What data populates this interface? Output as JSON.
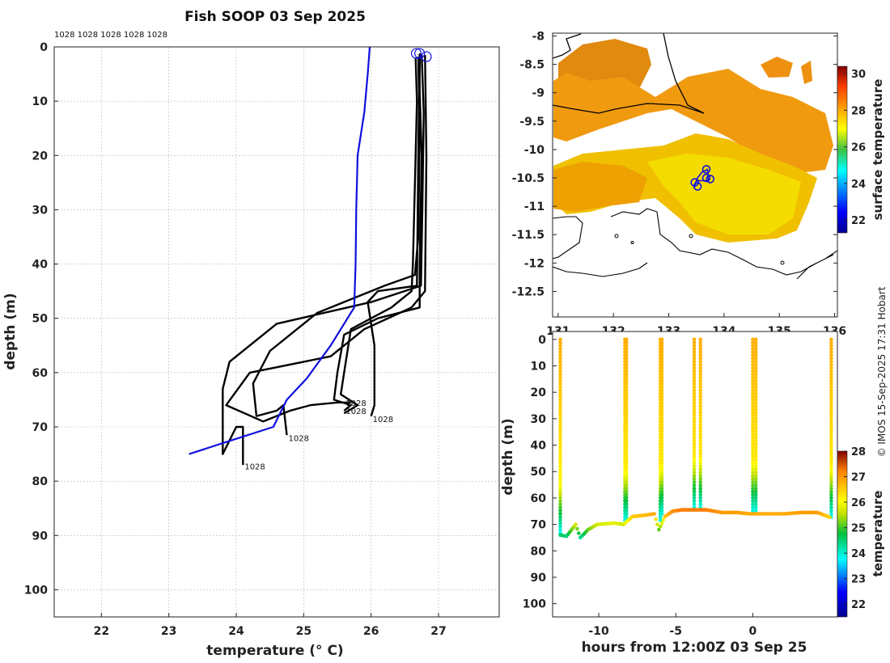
{
  "title": "Fish SOOP 03 Sep 2025",
  "credit": "© IMOS 15-Sep-2025 17:31 Hobart",
  "colors": {
    "profile": "#000000",
    "climatology": "#1010dd",
    "background": "#ffffff"
  },
  "chart_data": [
    {
      "type": "line",
      "panel": "profiles",
      "xlabel": "temperature (° C)",
      "ylabel": "depth (m)",
      "xlim": [
        21.3,
        27.9
      ],
      "ylim": [
        105,
        0
      ],
      "xticks": [
        "22",
        "23",
        "24",
        "25",
        "26",
        "27"
      ],
      "yticks": [
        "0",
        "10",
        "20",
        "30",
        "40",
        "50",
        "60",
        "70",
        "80",
        "90",
        "100"
      ],
      "grid": true,
      "top_labels": "1028 1028 1028 1028 1028",
      "end_labels": [
        {
          "text": "1028",
          "x": 25.6,
          "y": 65.5
        },
        {
          "text": "1028",
          "x": 25.6,
          "y": 67.0
        },
        {
          "text": "1028",
          "x": 26.0,
          "y": 68.5
        },
        {
          "text": "1028",
          "x": 24.75,
          "y": 72.0
        },
        {
          "text": "1028",
          "x": 24.1,
          "y": 77.2
        }
      ],
      "surface_markers": [
        [
          26.67,
          1.2
        ],
        [
          26.72,
          1.2
        ],
        [
          26.82,
          1.8
        ]
      ],
      "series": [
        {
          "name": "profile 1",
          "color": "#000000",
          "points": [
            [
              26.72,
              1.2
            ],
            [
              26.72,
              8
            ],
            [
              26.75,
              20
            ],
            [
              26.72,
              40
            ],
            [
              26.72,
              48
            ],
            [
              26.1,
              50
            ],
            [
              25.6,
              53
            ],
            [
              25.5,
              60
            ],
            [
              25.45,
              65
            ],
            [
              25.7,
              66
            ],
            [
              25.6,
              67
            ]
          ]
        },
        {
          "name": "profile 2",
          "color": "#000000",
          "points": [
            [
              26.66,
              2
            ],
            [
              26.68,
              10
            ],
            [
              26.66,
              20
            ],
            [
              26.62,
              40
            ],
            [
              26.6,
              45
            ],
            [
              26.3,
              48
            ],
            [
              25.7,
              52
            ],
            [
              25.6,
              60
            ],
            [
              25.55,
              64
            ],
            [
              25.8,
              66
            ],
            [
              25.6,
              67.5
            ]
          ]
        },
        {
          "name": "profile 3",
          "color": "#000000",
          "points": [
            [
              26.75,
              1.5
            ],
            [
              26.78,
              12
            ],
            [
              26.76,
              30
            ],
            [
              26.74,
              44
            ],
            [
              26.0,
              47
            ],
            [
              24.6,
              51
            ],
            [
              23.9,
              58
            ],
            [
              23.8,
              63
            ],
            [
              23.8,
              75
            ],
            [
              24.0,
              70
            ],
            [
              24.1,
              70
            ],
            [
              24.1,
              77
            ]
          ]
        },
        {
          "name": "profile 4",
          "color": "#000000",
          "points": [
            [
              26.7,
              1.8
            ],
            [
              26.72,
              15
            ],
            [
              26.7,
              35
            ],
            [
              26.65,
              42
            ],
            [
              26.2,
              44
            ],
            [
              25.2,
              49
            ],
            [
              24.5,
              56
            ],
            [
              24.25,
              62
            ],
            [
              24.3,
              68
            ],
            [
              24.6,
              67
            ],
            [
              24.7,
              66
            ],
            [
              24.75,
              71.5
            ]
          ]
        },
        {
          "name": "profile 5",
          "color": "#000000",
          "points": [
            [
              26.8,
              1.5
            ],
            [
              26.82,
              20
            ],
            [
              26.8,
              45
            ],
            [
              26.6,
              48
            ],
            [
              25.9,
              52
            ],
            [
              25.4,
              57
            ],
            [
              24.2,
              60
            ],
            [
              23.85,
              66
            ],
            [
              24.4,
              69
            ],
            [
              24.8,
              67
            ],
            [
              25.1,
              66
            ],
            [
              25.5,
              65.5
            ],
            [
              25.7,
              65.5
            ]
          ]
        },
        {
          "name": "profile 6",
          "color": "#000000",
          "points": [
            [
              26.72,
              1.5
            ],
            [
              26.7,
              20
            ],
            [
              26.68,
              44
            ],
            [
              26.1,
              45
            ],
            [
              25.95,
              47
            ],
            [
              26.05,
              55
            ],
            [
              26.05,
              66
            ],
            [
              26.0,
              68
            ]
          ]
        },
        {
          "name": "climatology",
          "color": "#1010dd",
          "points": [
            [
              25.98,
              0
            ],
            [
              25.95,
              5
            ],
            [
              25.9,
              12
            ],
            [
              25.8,
              20
            ],
            [
              25.78,
              30
            ],
            [
              25.77,
              40
            ],
            [
              25.75,
              48
            ],
            [
              25.4,
              55
            ],
            [
              25.05,
              61
            ],
            [
              24.75,
              65
            ],
            [
              24.55,
              70
            ],
            [
              23.8,
              73
            ],
            [
              23.3,
              75
            ]
          ]
        }
      ]
    },
    {
      "type": "heatmap",
      "panel": "sst_map",
      "xlim": [
        130.9,
        136.05
      ],
      "ylim": [
        -12.95,
        -7.95
      ],
      "xticks": [
        "131",
        "132",
        "133",
        "134",
        "135",
        "136"
      ],
      "yticks": [
        "-8",
        "-8.5",
        "-9",
        "-9.5",
        "-10",
        "-10.5",
        "-11",
        "-11.5",
        "-12",
        "-12.5"
      ],
      "colorbar_label": "surface temperature",
      "colorbar_ticks": [
        "22",
        "24",
        "26",
        "28",
        "30"
      ],
      "colorbar_range": [
        21.3,
        30.4
      ],
      "tow_track": [
        [
          133.47,
          -10.62
        ],
        [
          133.52,
          -10.5
        ],
        [
          133.6,
          -10.4
        ],
        [
          133.7,
          -10.35
        ],
        [
          133.72,
          -10.55
        ],
        [
          133.6,
          -10.55
        ],
        [
          133.5,
          -10.55
        ],
        [
          133.46,
          -10.68
        ]
      ],
      "tow_markers": [
        [
          133.47,
          -10.58
        ],
        [
          133.52,
          -10.65
        ],
        [
          133.68,
          -10.35
        ],
        [
          133.75,
          -10.52
        ],
        [
          133.68,
          -10.5
        ]
      ]
    },
    {
      "type": "scatter",
      "panel": "depth_time",
      "xlabel": "hours from 12:00Z 03 Sep 25",
      "ylabel": "depth (m)",
      "xlim": [
        -13.0,
        5.5
      ],
      "ylim": [
        105,
        -3
      ],
      "xticks": [
        "-10",
        "-5",
        "0"
      ],
      "yticks": [
        "0",
        "10",
        "20",
        "30",
        "40",
        "50",
        "60",
        "70",
        "80",
        "90",
        "100"
      ],
      "colorbar_label": "temperature",
      "colorbar_ticks": [
        "22",
        "23",
        "24",
        "25",
        "26",
        "27",
        "28"
      ],
      "colorbar_range": [
        21.5,
        28.0
      ],
      "surface_temperature": 26.8,
      "transitions": [
        {
          "t": -12.5,
          "d": 74,
          "sst": 26.8
        },
        {
          "t": -8.3,
          "d": 69,
          "sst": 26.8
        },
        {
          "t": -8.2,
          "d": 69,
          "sst": 26.8
        },
        {
          "t": -6.0,
          "d": 69,
          "sst": 26.8
        },
        {
          "t": -5.9,
          "d": 67,
          "sst": 26.8
        },
        {
          "t": -3.8,
          "d": 64,
          "sst": 26.8
        },
        {
          "t": -3.4,
          "d": 64,
          "sst": 26.8
        },
        {
          "t": 0.0,
          "d": 65.5,
          "sst": 26.8
        },
        {
          "t": 0.2,
          "d": 65.5,
          "sst": 26.8
        },
        {
          "t": 5.1,
          "d": 67.5,
          "sst": 26.8
        }
      ],
      "bottom_track": [
        {
          "t": -12.5,
          "d": 74
        },
        {
          "t": -12.1,
          "d": 74.5
        },
        {
          "t": -11.5,
          "d": 70
        },
        {
          "t": -11.2,
          "d": 75
        },
        {
          "t": -10.7,
          "d": 72
        },
        {
          "t": -10.1,
          "d": 70
        },
        {
          "t": -9.0,
          "d": 69.5
        },
        {
          "t": -8.4,
          "d": 70
        },
        {
          "t": -7.8,
          "d": 67
        },
        {
          "t": -7.0,
          "d": 66.5
        },
        {
          "t": -6.4,
          "d": 66
        },
        {
          "t": -6.1,
          "d": 72
        },
        {
          "t": -5.7,
          "d": 67
        },
        {
          "t": -5.2,
          "d": 65
        },
        {
          "t": -4.6,
          "d": 64.5
        },
        {
          "t": -4.0,
          "d": 64.5
        },
        {
          "t": -3.0,
          "d": 64.5
        },
        {
          "t": -2.0,
          "d": 65.5
        },
        {
          "t": -1.0,
          "d": 65.5
        },
        {
          "t": -0.2,
          "d": 66
        },
        {
          "t": 0.8,
          "d": 66
        },
        {
          "t": 2.0,
          "d": 66
        },
        {
          "t": 3.2,
          "d": 65.5
        },
        {
          "t": 4.2,
          "d": 65.5
        },
        {
          "t": 5.1,
          "d": 67.5
        }
      ]
    }
  ]
}
